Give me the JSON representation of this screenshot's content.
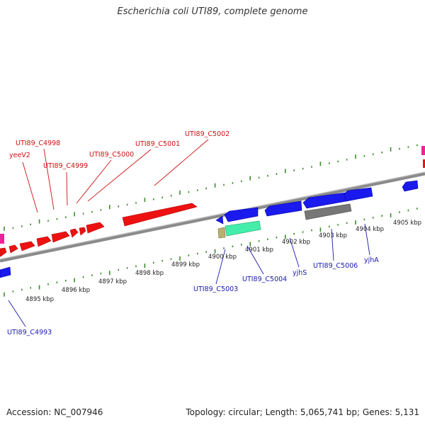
{
  "title": "Escherichia coli UTI89, complete genome",
  "footer": {
    "accession": "Accession: NC_007946",
    "summary": "Topology: circular; Length: 5,065,741 bp; Genes: 5,131"
  },
  "colors": {
    "backbone": "#8a8a8a",
    "tick": "#3c8c2a",
    "forward_label": "#cc1111",
    "reverse_label": "#1a1aaa",
    "forward_gene": "#ee1111",
    "reverse_gene": "#1a1aee",
    "grey_gene": "#777777",
    "teal_gene": "#44eeaa",
    "tan_gene": "#b8b070",
    "magenta_gene": "#ee2299"
  },
  "scale_labels": [
    "4895 kbp",
    "4896 kbp",
    "4897 kbp",
    "4898 kbp",
    "4899 kbp",
    "4900 kbp",
    "4901 kbp",
    "4902 kbp",
    "4903 kbp",
    "4904 kbp",
    "4905 kbp"
  ],
  "forward_gene_labels": [
    "yeeV2",
    "UTI89_C4998",
    "UTI89_C4999",
    "UTI89_C5000",
    "UTI89_C5001",
    "UTI89_C5002"
  ],
  "reverse_gene_labels": [
    "UTI89_C4993",
    "UTI89_C5003",
    "UTI89_C5004",
    "yjhS",
    "UTI89_C5006",
    "yjhA"
  ]
}
